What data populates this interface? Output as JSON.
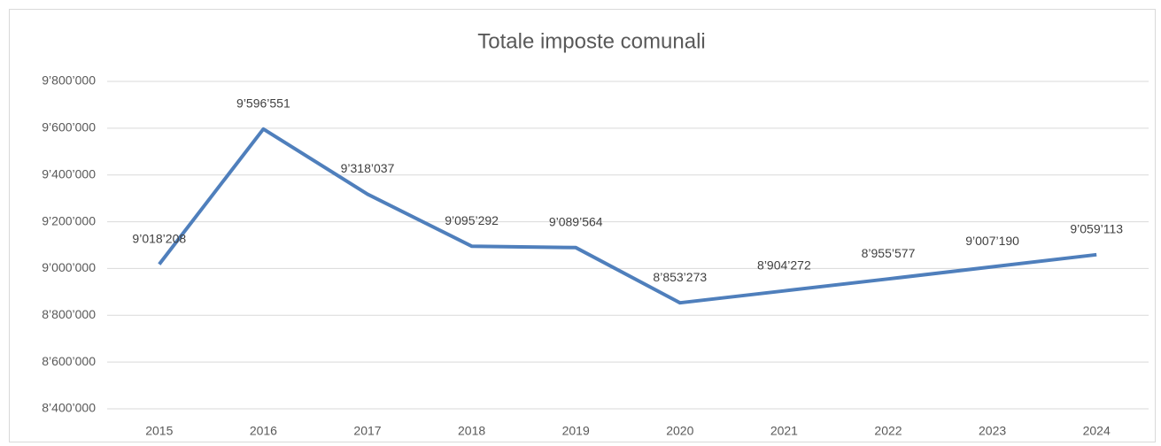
{
  "chart_data": {
    "type": "line",
    "title": "Totale imposte comunali",
    "categories": [
      "2015",
      "2016",
      "2017",
      "2018",
      "2019",
      "2020",
      "2021",
      "2022",
      "2023",
      "2024"
    ],
    "series": [
      {
        "color": "#4f7fbc",
        "values": [
          9018208,
          9596551,
          9318037,
          9095292,
          9089564,
          8853273,
          8904272,
          8955577,
          9007190,
          9059113
        ],
        "value_labels": [
          "9’018’208",
          "9’596’551",
          "9’318’037",
          "9’095’292",
          "9’089’564",
          "8’853’273",
          "8’904’272",
          "8’955’577",
          "9’007’190",
          "9’059’113"
        ]
      }
    ],
    "ylim": [
      8400000,
      9800000
    ],
    "yticks": [
      {
        "value": 8400000,
        "label": "8’400’000"
      },
      {
        "value": 8600000,
        "label": "8’600’000"
      },
      {
        "value": 8800000,
        "label": "8’800’000"
      },
      {
        "value": 9000000,
        "label": "9’000’000"
      },
      {
        "value": 9200000,
        "label": "9’200’000"
      },
      {
        "value": 9400000,
        "label": "9’400’000"
      },
      {
        "value": 9600000,
        "label": "9’600’000"
      },
      {
        "value": 9800000,
        "label": "9’800’000"
      }
    ],
    "grid": true
  }
}
